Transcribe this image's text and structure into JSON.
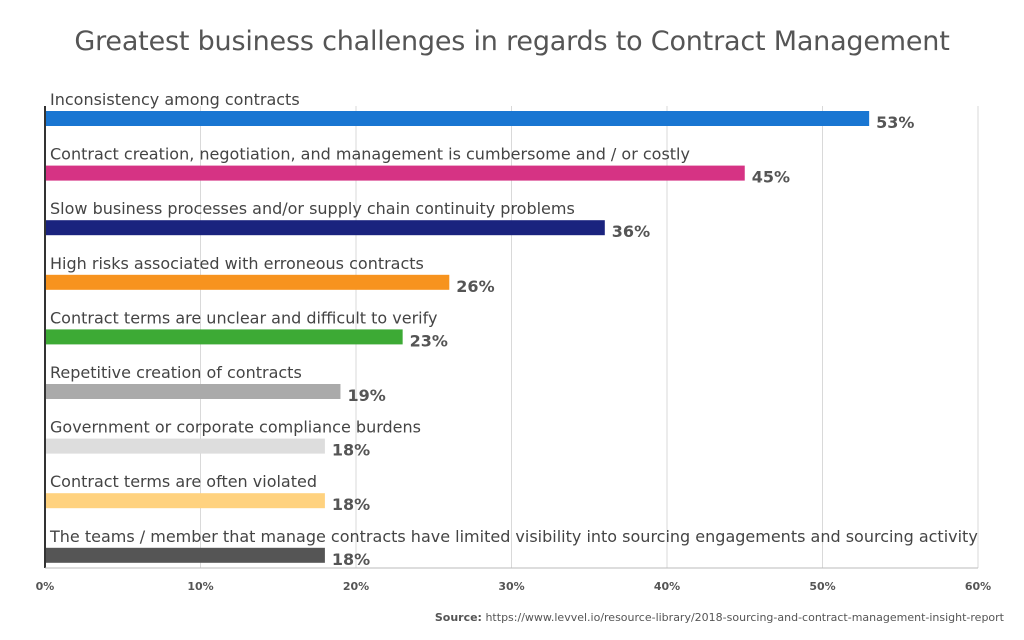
{
  "chart_data": {
    "type": "bar",
    "orientation": "horizontal",
    "title": "Greatest business challenges in regards to Contract Management",
    "categories": [
      "Inconsistency among contracts",
      "Contract creation, negotiation, and management is cumbersome and / or costly",
      "Slow business processes and/or supply chain continuity problems",
      "High risks associated with erroneous contracts",
      "Contract terms are unclear and difficult to verify",
      "Repetitive creation of contracts",
      "Government or corporate compliance burdens",
      "Contract terms are often violated",
      "The teams / member that manage contracts have limited visibility into sourcing engagements and sourcing activity"
    ],
    "values": [
      53,
      45,
      36,
      26,
      23,
      19,
      18,
      18,
      18
    ],
    "value_labels": [
      "53%",
      "45%",
      "36%",
      "26%",
      "23%",
      "19%",
      "18%",
      "18%",
      "18%"
    ],
    "colors": [
      "#1976d2",
      "#d63384",
      "#1a237e",
      "#f7931e",
      "#3daa35",
      "#aaaaaa",
      "#dddddd",
      "#ffd27f",
      "#555555"
    ],
    "xlim": [
      0,
      60
    ],
    "xticks": [
      0,
      10,
      20,
      30,
      40,
      50,
      60
    ],
    "xtick_labels": [
      "0%",
      "10%",
      "20%",
      "30%",
      "40%",
      "50%",
      "60%"
    ],
    "grid": "vertical",
    "xlabel": "",
    "ylabel": ""
  },
  "source": {
    "label": "Source:",
    "text": " https://www.levvel.io/resource-library/2018-sourcing-and-contract-management-insight-report"
  }
}
